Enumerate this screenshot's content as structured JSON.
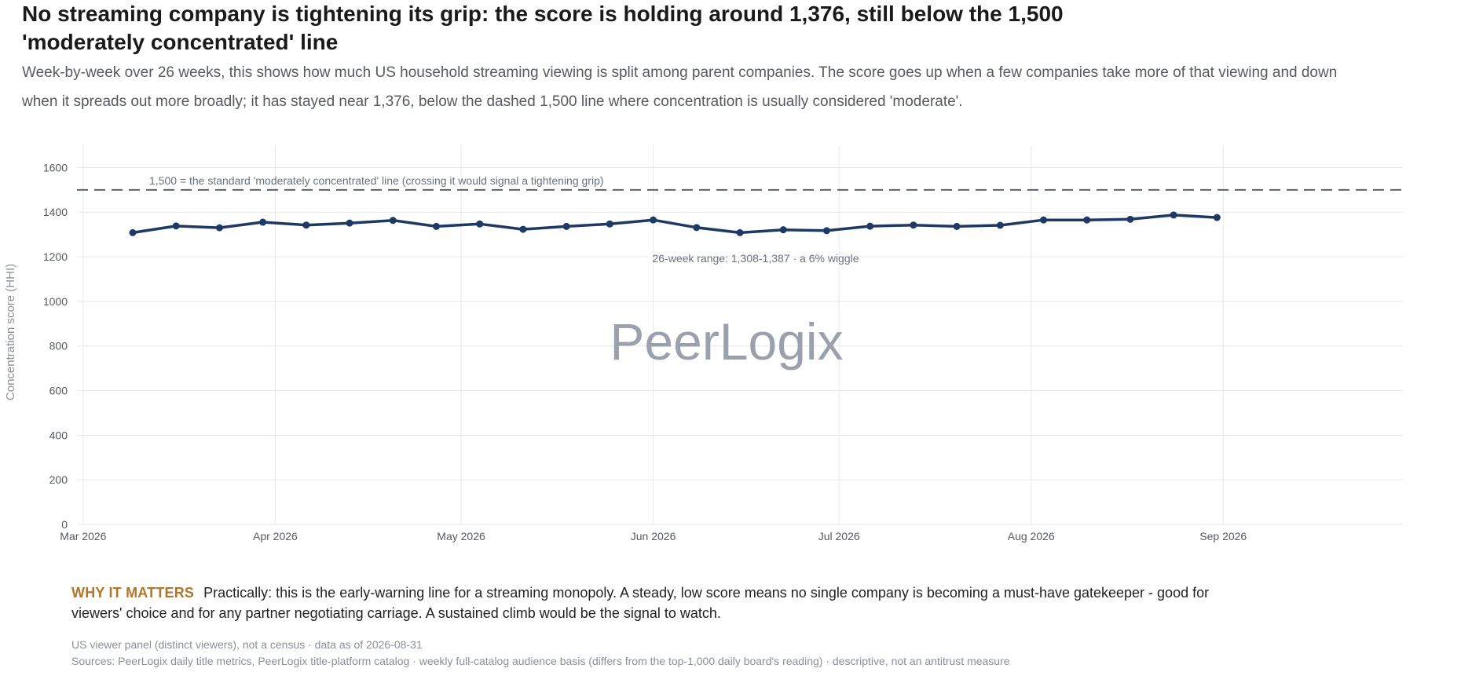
{
  "headline": "No streaming company is tightening its grip: the score is holding around 1,376, still below the 1,500 'moderately concentrated' line",
  "subhead": "Week-by-week over 26 weeks, this shows how much US household streaming viewing is split among parent companies. The score goes up when a few companies take more of that viewing and down when it spreads out more broadly; it has stayed near 1,376, below the dashed 1,500 line where concentration is usually considered 'moderate'.",
  "watermark": "PeerLogix",
  "chart_data": {
    "type": "line",
    "xlabel": "",
    "ylabel": "Concentration score (HHI)",
    "ylim": [
      0,
      1700
    ],
    "yticks": [
      0,
      200,
      400,
      600,
      800,
      1000,
      1200,
      1400,
      1600
    ],
    "xlim": [
      "2026-02-28",
      "2026-09-30"
    ],
    "xticks": [
      {
        "date": "2026-03-01",
        "label": "Mar 2026"
      },
      {
        "date": "2026-04-01",
        "label": "Apr 2026"
      },
      {
        "date": "2026-05-01",
        "label": "May 2026"
      },
      {
        "date": "2026-06-01",
        "label": "Jun 2026"
      },
      {
        "date": "2026-07-01",
        "label": "Jul 2026"
      },
      {
        "date": "2026-08-01",
        "label": "Aug 2026"
      },
      {
        "date": "2026-09-01",
        "label": "Sep 2026"
      }
    ],
    "grid": true,
    "legend": "none",
    "color": "#1f3864",
    "series": [
      {
        "x": [
          "2026-03-09",
          "2026-03-16",
          "2026-03-23",
          "2026-03-30",
          "2026-04-06",
          "2026-04-13",
          "2026-04-20",
          "2026-04-27",
          "2026-05-04",
          "2026-05-11",
          "2026-05-18",
          "2026-05-25",
          "2026-06-01",
          "2026-06-08",
          "2026-06-15",
          "2026-06-22",
          "2026-06-29",
          "2026-07-06",
          "2026-07-13",
          "2026-07-20",
          "2026-07-27",
          "2026-08-03",
          "2026-08-10",
          "2026-08-17",
          "2026-08-24",
          "2026-08-31"
        ],
        "y": [
          1308,
          1338,
          1330,
          1355,
          1342,
          1351,
          1363,
          1336,
          1347,
          1323,
          1336,
          1347,
          1365,
          1331,
          1308,
          1321,
          1317,
          1337,
          1342,
          1336,
          1341,
          1365,
          1365,
          1368,
          1387,
          1376
        ]
      }
    ],
    "reference_line": {
      "y": 1500,
      "style": "dashed",
      "label": "1,500 = the standard 'moderately concentrated' line (crossing it would signal a tightening grip)"
    },
    "annotation": "26-week range: 1,308-1,387 · a 6% wiggle"
  },
  "why": {
    "label": "WHY IT MATTERS",
    "text": "Practically: this is the early-warning line for a streaming monopoly. A steady, low score means no single company is becoming a must-have gatekeeper - good for viewers' choice and for any partner negotiating carriage. A sustained climb would be the signal to watch."
  },
  "footnotes": [
    "US viewer panel (distinct viewers), not a census · data as of 2026-08-31",
    "Sources: PeerLogix daily title metrics, PeerLogix title-platform catalog · weekly full-catalog audience basis (differs from the top-1,000 daily board's reading) · descriptive, not an antitrust measure"
  ]
}
